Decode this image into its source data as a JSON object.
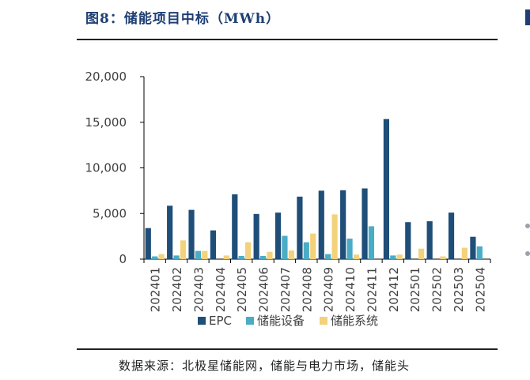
{
  "header": {
    "title": "图8：储能项目中标（MWh）"
  },
  "footer": {
    "source": "数据来源：北极星储能网，储能与电力市场，储能头"
  },
  "colors": {
    "EPC": "#1f4e79",
    "储能设备": "#4bacc6",
    "储能系统": "#f2d27b"
  },
  "chart_data": {
    "type": "bar",
    "title": "",
    "xlabel": "",
    "ylabel": "",
    "ylim": [
      0,
      20000
    ],
    "yticks": [
      "20,000",
      "15,000",
      "10,000",
      "5,000",
      "0"
    ],
    "yticks_values": [
      20000,
      15000,
      10000,
      5000,
      0
    ],
    "legend_position": "bottom",
    "grid": false,
    "categories": [
      "202401",
      "202402",
      "202403",
      "202404",
      "202405",
      "202406",
      "202407",
      "202408",
      "202409",
      "202410",
      "202411",
      "202412",
      "202501",
      "202502",
      "202503",
      "202504"
    ],
    "series": [
      {
        "name": "EPC",
        "values": [
          3400,
          5850,
          5400,
          3150,
          7100,
          4950,
          5100,
          6850,
          7500,
          7550,
          7750,
          15350,
          4050,
          4150,
          5100,
          2450
        ]
      },
      {
        "name": "储能设备",
        "values": [
          300,
          400,
          900,
          0,
          350,
          350,
          2550,
          1850,
          550,
          2250,
          3600,
          400,
          0,
          0,
          0,
          1400
        ]
      },
      {
        "name": "储能系统",
        "values": [
          550,
          2050,
          900,
          400,
          1850,
          800,
          950,
          2800,
          4900,
          500,
          0,
          500,
          1150,
          300,
          1250,
          0
        ]
      }
    ]
  }
}
